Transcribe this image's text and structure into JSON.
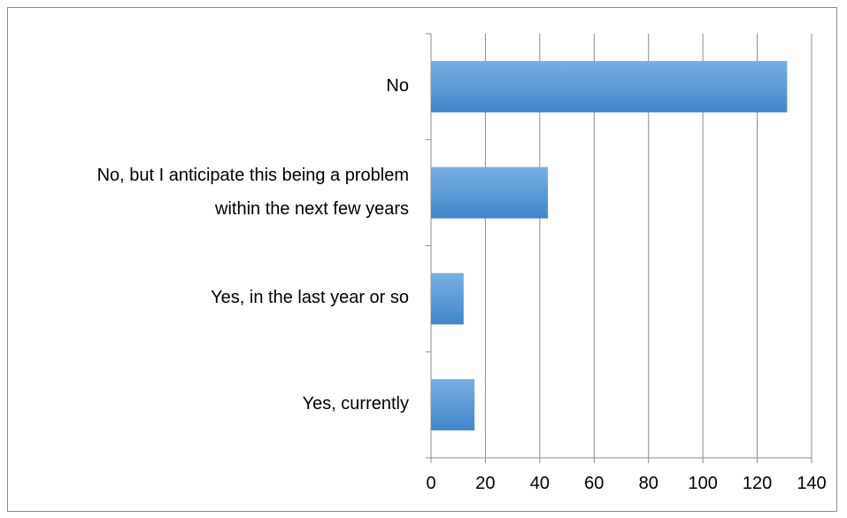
{
  "chart_data": {
    "type": "bar",
    "orientation": "horizontal",
    "categories": [
      "No",
      "No, but I anticipate this being a problem within the next few years",
      "Yes, in the last year or so",
      "Yes, currently"
    ],
    "category_lines": [
      [
        "No"
      ],
      [
        "No, but I anticipate this being a problem",
        "within the next few years"
      ],
      [
        "Yes, in the last year or so"
      ],
      [
        "Yes, currently"
      ]
    ],
    "values": [
      131,
      43,
      12,
      16
    ],
    "xlim": [
      0,
      140
    ],
    "xticks": [
      "0",
      "20",
      "40",
      "60",
      "80",
      "100",
      "120",
      "140"
    ],
    "grid": true,
    "legend": "none",
    "bar_color": "#5b9bd5",
    "bar_color_light": "#71aae0",
    "bar_color_dark": "#3f86cc"
  }
}
